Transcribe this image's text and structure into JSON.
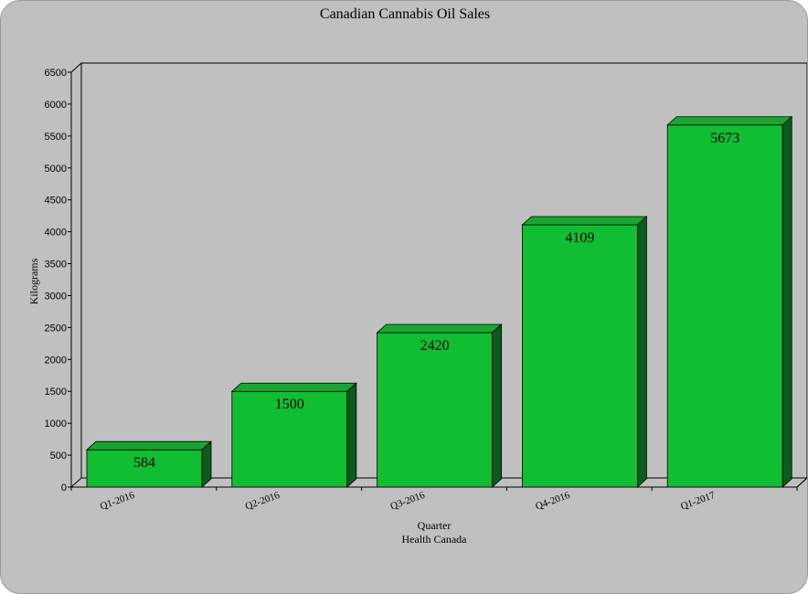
{
  "chart_data": {
    "type": "bar",
    "title": "Canadian Cannabis Oil Sales",
    "xlabel": "Quarter",
    "subtitle": "Health Canada",
    "ylabel": "Kilograms",
    "categories": [
      "Q1-2016",
      "Q2-2016",
      "Q3-2016",
      "Q4-2016",
      "Q1-2017"
    ],
    "values": [
      584,
      1500,
      2420,
      4109,
      5673
    ],
    "value_labels": [
      "584",
      "1500",
      "2420",
      "4109",
      "5673"
    ],
    "ylim": [
      0,
      6500
    ],
    "yticks": [
      "0",
      "500",
      "1000",
      "1500",
      "2000",
      "2500",
      "3000",
      "3500",
      "4000",
      "4500",
      "5000",
      "5500",
      "6000",
      "6500"
    ],
    "grid": false,
    "legend": "none",
    "colors": {
      "bar_front": "#10bd33",
      "bar_top": "#1aa532",
      "bar_side": "#0b5c1c",
      "background": "#c0c0c0"
    }
  }
}
